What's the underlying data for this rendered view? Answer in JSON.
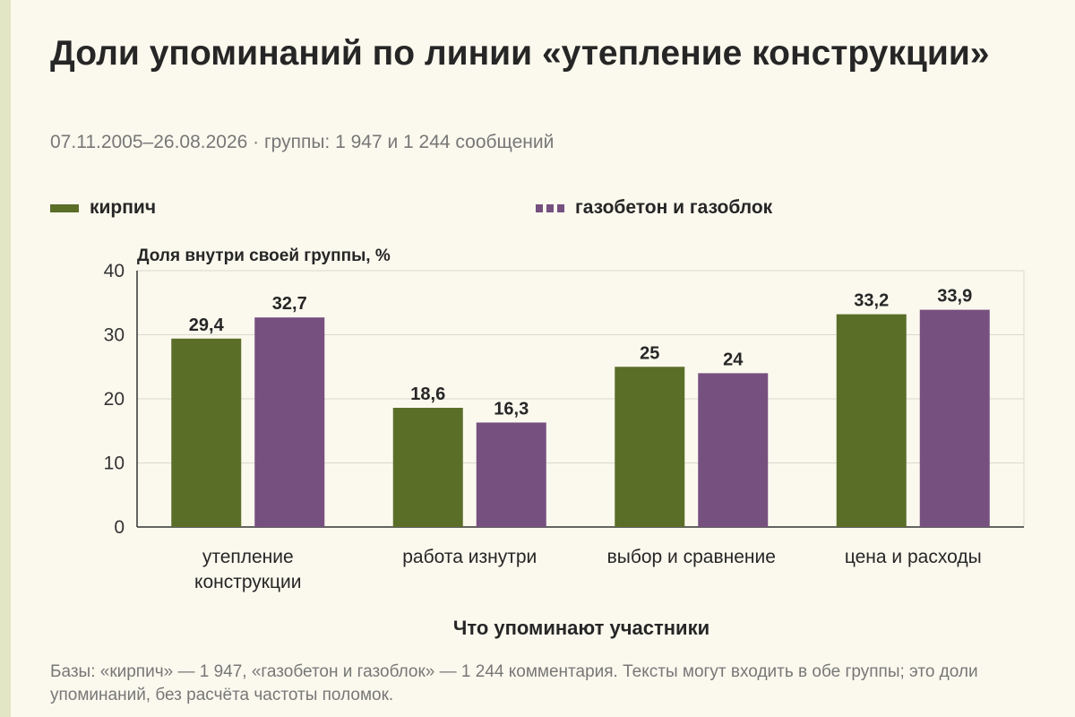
{
  "title": "Доли упоминаний по линии «утепление конструкции»",
  "subtitle": "07.11.2005–26.08.2026 · группы: 1 947 и 1 244 сообщений",
  "footnote": "Базы: «кирпич» — 1 947, «газобетон и газоблок» — 1 244 комментария. Тексты могут входить в обе группы; это доли упоминаний, без расчёта частоты поломок.",
  "colors": {
    "kirpich": "#5a6e28",
    "gazobeton": "#76507f",
    "grid": "#d9d9cf",
    "axis": "#333333"
  },
  "chart_data": {
    "type": "bar",
    "title": "Доли упоминаний по линии «утепление конструкции»",
    "subtitle": "07.11.2005–26.08.2026 · группы: 1 947 и 1 244 сообщений",
    "xlabel": "Что упоминают участники",
    "ylabel": "Доля внутри своей группы, %",
    "ylim": [
      0,
      40
    ],
    "yticks": [
      0,
      10,
      20,
      30,
      40
    ],
    "grid": true,
    "legend_position": "top",
    "categories": [
      [
        "утепление",
        "конструкции"
      ],
      [
        "работа изнутри"
      ],
      [
        "выбор и сравнение"
      ],
      [
        "цена и расходы"
      ]
    ],
    "series": [
      {
        "name": "кирпич",
        "values": [
          29.4,
          18.6,
          25,
          33.2
        ],
        "labels": [
          "29,4",
          "18,6",
          "25",
          "33,2"
        ]
      },
      {
        "name": "газобетон и газоблок",
        "values": [
          32.7,
          16.3,
          24,
          33.9
        ],
        "labels": [
          "32,7",
          "16,3",
          "24",
          "33,9"
        ]
      }
    ]
  }
}
